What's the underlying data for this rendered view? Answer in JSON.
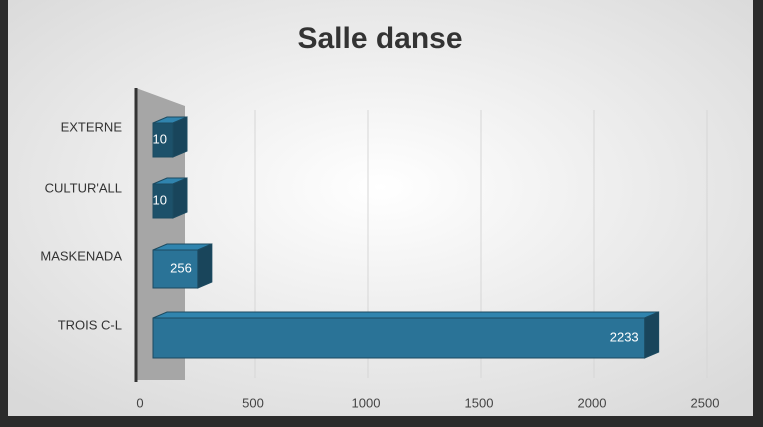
{
  "chart_data": {
    "type": "bar",
    "orientation": "horizontal",
    "title": "Salle danse",
    "categories": [
      "EXTERNE",
      "CULTUR'ALL",
      "MASKENADA",
      "TROIS C-L"
    ],
    "values": [
      10,
      10,
      256,
      2233
    ],
    "color": "#2a7397",
    "xlim": [
      0,
      2500
    ],
    "xticks": [
      0,
      500,
      1000,
      1500,
      2000,
      2500
    ],
    "grid": true
  }
}
